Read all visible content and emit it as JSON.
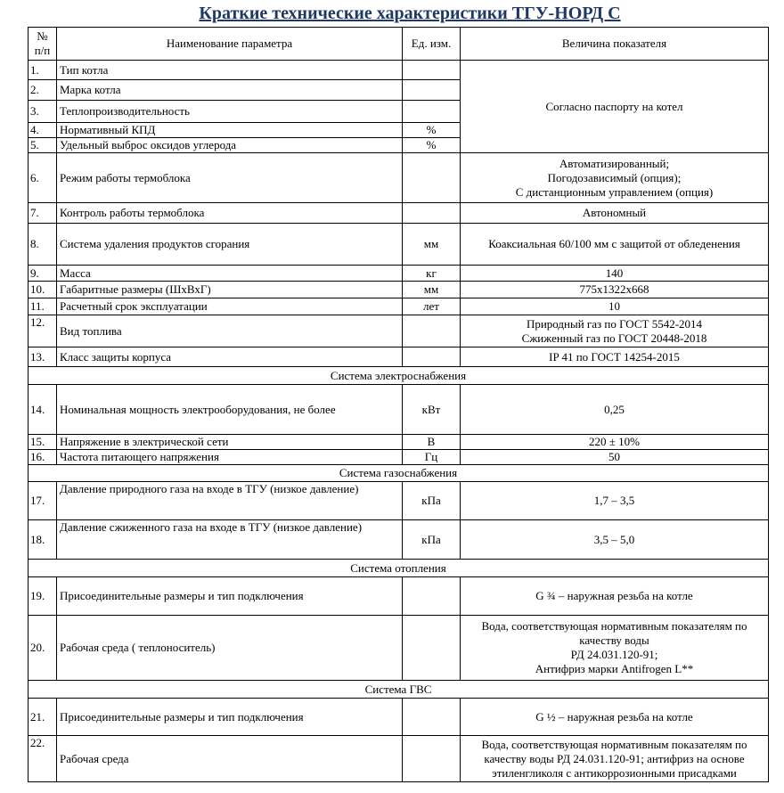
{
  "title": "Краткие технические характеристики ТГУ-НОРД С",
  "header": {
    "num": "№ п/п",
    "name": "Наименование параметра",
    "unit": "Ед. изм.",
    "value": "Величина показателя"
  },
  "merged_value_1_5": "Согласно паспорту на котел",
  "rows": [
    {
      "num": "1.",
      "name": "Тип котла",
      "unit": ""
    },
    {
      "num": "2.",
      "name": "Марка котла",
      "unit": ""
    },
    {
      "num": "3.",
      "name": "Теплопроизводительность",
      "unit": ""
    },
    {
      "num": "4.",
      "name": "Нормативный КПД",
      "unit": "%"
    },
    {
      "num": "5.",
      "name": "Удельный выброс оксидов углерода",
      "unit": "%"
    },
    {
      "num": "6.",
      "name": "Режим работы термоблока",
      "unit": "",
      "value": [
        "Автоматизированный;",
        "Погодозависимый (опция);",
        "С дистанционным управлением (опция)"
      ]
    },
    {
      "num": "7.",
      "name": "Контроль работы термоблока",
      "unit": "",
      "value": "Автономный"
    },
    {
      "num": "8.",
      "name": "Система удаления продуктов сгорания",
      "unit": "мм",
      "value": "Коаксиальная 60/100 мм с защитой от обледенения"
    },
    {
      "num": "9.",
      "name": "Масса",
      "unit": "кг",
      "value": "140"
    },
    {
      "num": "10.",
      "name": "Габаритные размеры (ШхВхГ)",
      "unit": "мм",
      "value": "775х1322х668"
    },
    {
      "num": "11.",
      "name": "Расчетный срок эксплуатации",
      "unit": "лет",
      "value": "10"
    },
    {
      "num": "12.",
      "name": "Вид топлива",
      "unit": "",
      "value": [
        "Природный газ по ГОСТ 5542-2014",
        "Сжиженный газ по ГОСТ 20448-2018"
      ]
    },
    {
      "num": "13.",
      "name": "Класс защиты корпуса",
      "unit": "",
      "value": "IP 41 по ГОСТ 14254-2015"
    },
    {
      "num": "14.",
      "name": "Номинальная мощность электрооборудования, не более",
      "unit": "кВт",
      "value": "0,25"
    },
    {
      "num": "15.",
      "name": "Напряжение в электрической сети",
      "unit": "В",
      "value": "220 ± 10%"
    },
    {
      "num": "16.",
      "name": "Частота питающего напряжения",
      "unit": "Гц",
      "value": "50"
    },
    {
      "num": "17.",
      "name": "Давление природного газа на входе в ТГУ (низкое давление)",
      "unit": "кПа",
      "value": "1,7 – 3,5"
    },
    {
      "num": "18.",
      "name": "Давление сжиженного газа на входе в ТГУ (низкое давление)",
      "unit": "кПа",
      "value": "3,5 – 5,0"
    },
    {
      "num": "19.",
      "name": "Присоединительные размеры и тип подключения",
      "unit": "",
      "value": "G ¾ – наружная резьба на котле"
    },
    {
      "num": "20.",
      "name": "Рабочая среда ( теплоноситель)",
      "unit": "",
      "value": [
        "Вода, соответствующая нормативным показателям по",
        "качеству воды",
        "РД 24.031.120-91;",
        "Антифриз марки Antifrogen L**"
      ]
    },
    {
      "num": "21.",
      "name": "Присоединительные размеры и тип подключения",
      "unit": "",
      "value": "G ½ – наружная резьба на котле"
    },
    {
      "num": "22.",
      "name": "Рабочая среда",
      "unit": "",
      "value": [
        "Вода, соответствующая нормативным показателям по",
        "качеству воды РД 24.031.120-91; антифриз на основе",
        "этиленгликоля с антикоррозионными присадками"
      ]
    }
  ],
  "sections": {
    "power": "Система электроснабжения",
    "gas": "Система газоснабжения",
    "heating": "Система отопления",
    "dhw": "Система ГВС"
  }
}
